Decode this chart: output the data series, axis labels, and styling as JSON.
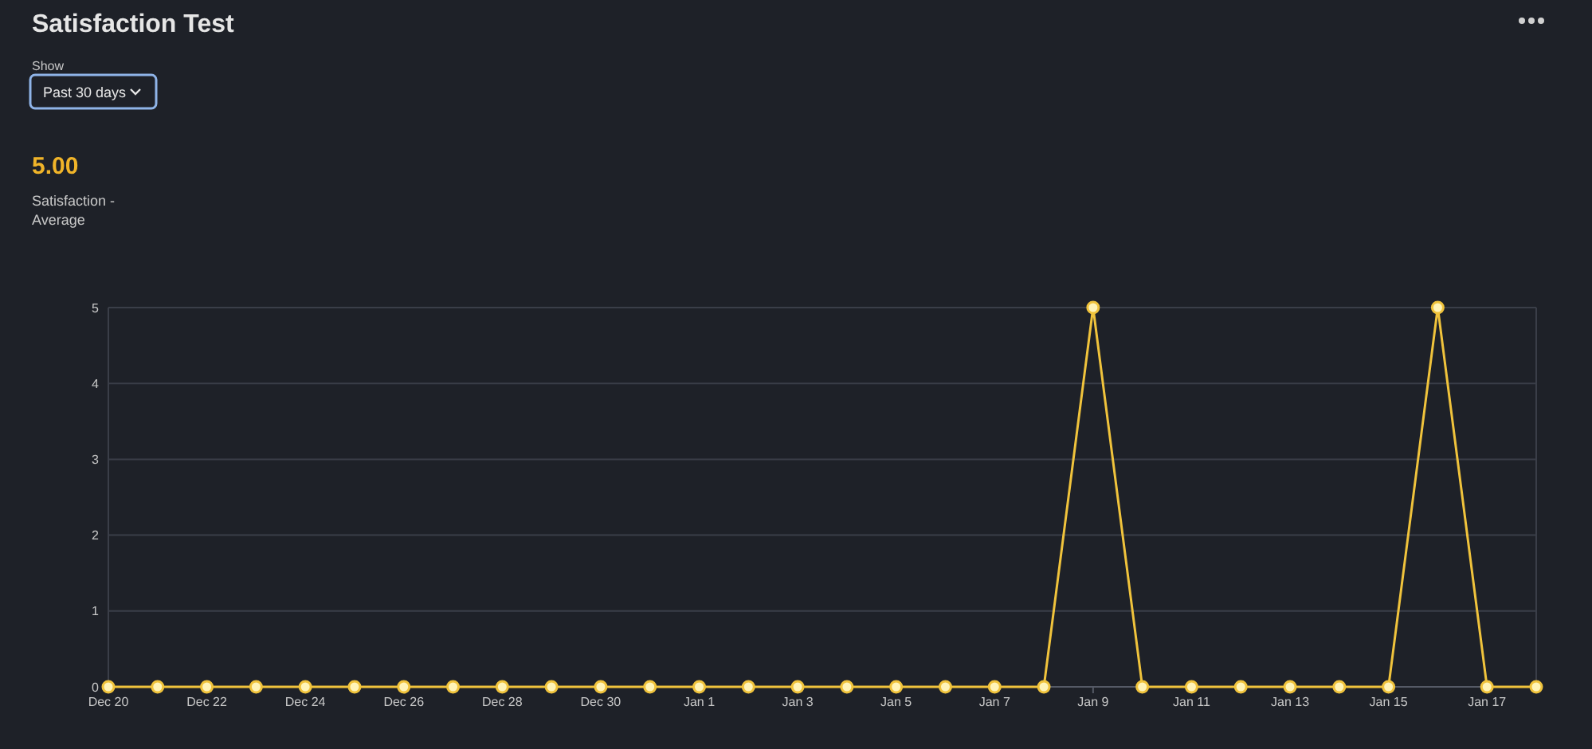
{
  "chart_data": {
    "type": "line",
    "title": "Satisfaction Test",
    "annotations": [
      "Show",
      "Past 30 days",
      "5.00",
      "Satisfaction - Average"
    ],
    "categories": [
      "Dec 20",
      null,
      "Dec 22",
      null,
      "Dec 24",
      null,
      "Dec 26",
      null,
      "Dec 28",
      null,
      "Dec 30",
      null,
      "Jan 1",
      null,
      "Jan 3",
      null,
      "Jan 5",
      null,
      "Jan 7",
      null,
      "Jan 9",
      null,
      "Jan 11",
      null,
      "Jan 13",
      null,
      "Jan 15",
      null,
      "Jan 17",
      null
    ],
    "series": [
      {
        "color": "#f0c33c",
        "values": [
          0,
          0,
          0,
          0,
          0,
          0,
          0,
          0,
          0,
          0,
          0,
          0,
          0,
          0,
          0,
          0,
          0,
          0,
          0,
          0,
          5,
          0,
          0,
          0,
          0,
          0,
          0,
          5,
          0,
          0
        ]
      }
    ],
    "ylim": [
      0,
      5
    ],
    "yticks": [
      0,
      1,
      2,
      3,
      4,
      5
    ],
    "grid": "y",
    "marker": "circle",
    "line_style": "solid"
  }
}
